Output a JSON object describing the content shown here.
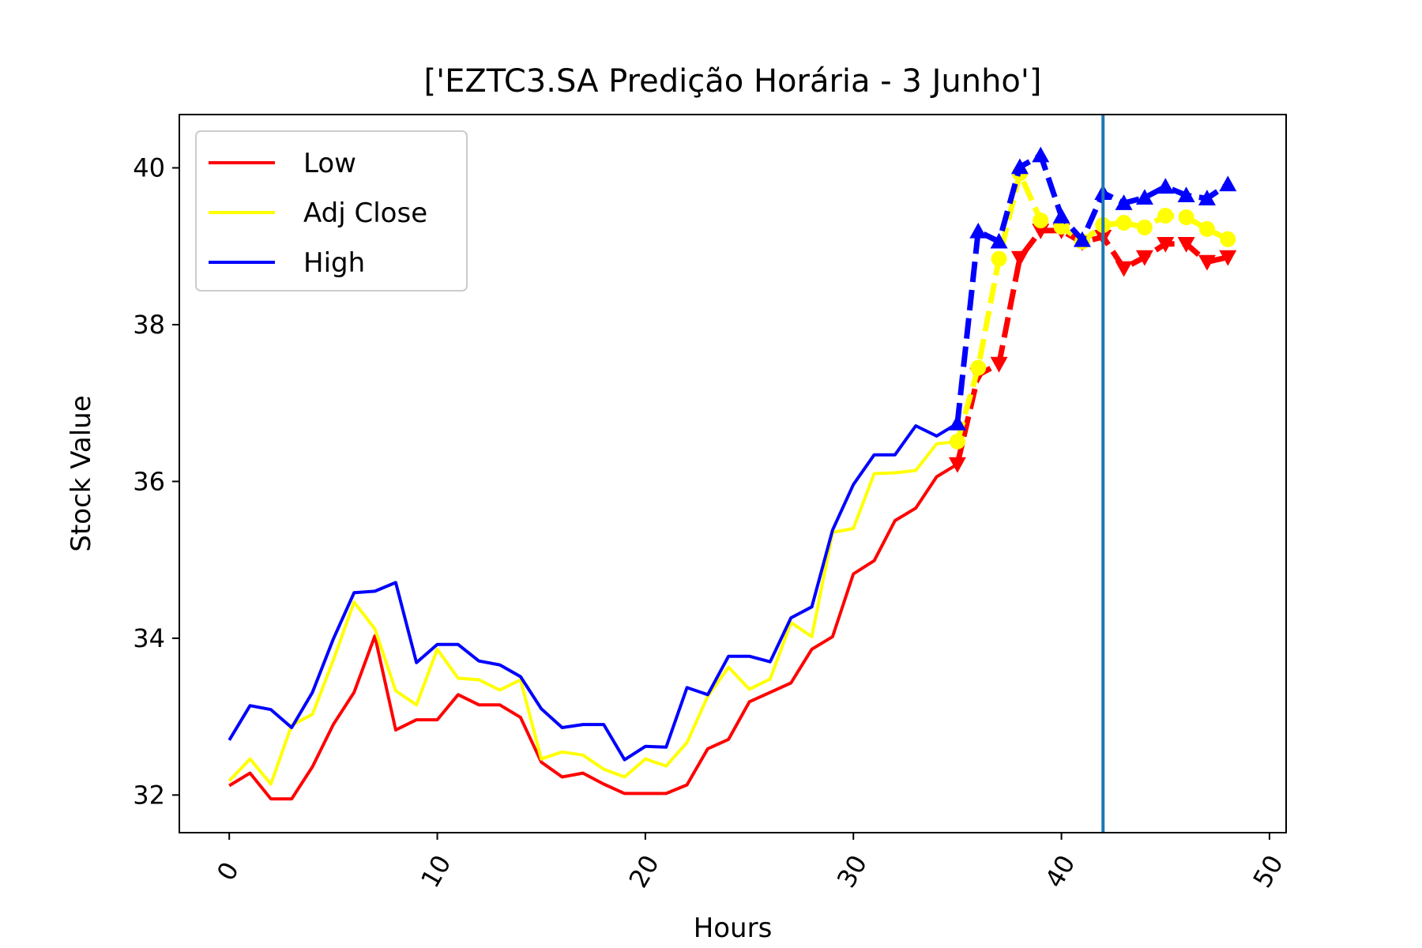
{
  "chart_data": {
    "type": "line",
    "title": "['EZTC3.SA Predição Horária - 3 Junho']",
    "xlabel": "Hours",
    "ylabel": "Stock Value",
    "xlim": [
      -2.4,
      50.8
    ],
    "ylim": [
      31.52,
      40.68
    ],
    "xticks": [
      0,
      10,
      20,
      30,
      40,
      50
    ],
    "xtick_labels": [
      "0",
      "10",
      "20",
      "30",
      "40",
      "50"
    ],
    "xtick_rotation": -60,
    "yticks": [
      32,
      34,
      36,
      38,
      40
    ],
    "ytick_labels": [
      "32",
      "34",
      "36",
      "38",
      "40"
    ],
    "grid": false,
    "legend": {
      "placement": "upper-left"
    },
    "vline": {
      "x": 42,
      "color": "#1f77b4"
    },
    "series": [
      {
        "name": "Low",
        "color": "#ff0000",
        "historical": {
          "x": [
            0,
            1,
            2,
            3,
            4,
            5,
            6,
            7,
            8,
            9,
            10,
            11,
            12,
            13,
            14,
            15,
            16,
            17,
            18,
            19,
            20,
            21,
            22,
            23,
            24,
            25,
            26,
            27,
            28,
            29,
            30,
            31,
            32,
            33,
            34,
            35
          ],
          "y": [
            32.12,
            32.28,
            31.95,
            31.95,
            32.36,
            32.9,
            33.31,
            34.03,
            32.83,
            32.96,
            32.96,
            33.28,
            33.15,
            33.15,
            32.99,
            32.42,
            32.23,
            32.28,
            32.14,
            32.02,
            32.02,
            32.02,
            32.13,
            32.59,
            32.71,
            33.19,
            33.31,
            33.43,
            33.86,
            34.02,
            34.82,
            34.99,
            35.5,
            35.66,
            36.06,
            36.22
          ]
        },
        "predicted": {
          "marker": "triangle-down",
          "x": [
            35,
            36,
            37,
            38,
            39,
            40,
            41,
            42,
            43,
            44,
            45,
            46,
            47,
            48
          ],
          "y": [
            36.22,
            37.36,
            37.5,
            38.85,
            39.2,
            39.2,
            39.05,
            39.12,
            38.72,
            38.86,
            39.03,
            39.03,
            38.8,
            38.86
          ]
        }
      },
      {
        "name": "Adj Close",
        "color": "#ffff00",
        "historical": {
          "x": [
            0,
            1,
            2,
            3,
            4,
            5,
            6,
            7,
            8,
            9,
            10,
            11,
            12,
            13,
            14,
            15,
            16,
            17,
            18,
            19,
            20,
            21,
            22,
            23,
            24,
            25,
            26,
            27,
            28,
            29,
            30,
            31,
            32,
            33,
            34,
            35
          ],
          "y": [
            32.18,
            32.46,
            32.14,
            32.89,
            33.03,
            33.72,
            34.46,
            34.12,
            33.33,
            33.15,
            33.86,
            33.49,
            33.47,
            33.34,
            33.47,
            32.46,
            32.55,
            32.51,
            32.33,
            32.23,
            32.46,
            32.37,
            32.67,
            33.26,
            33.63,
            33.35,
            33.48,
            34.2,
            34.02,
            35.35,
            35.4,
            36.1,
            36.11,
            36.14,
            36.48,
            36.51
          ]
        },
        "predicted": {
          "marker": "circle",
          "x": [
            35,
            36,
            37,
            38,
            39,
            40,
            41,
            42,
            43,
            44,
            45,
            46,
            47,
            48
          ],
          "y": [
            36.51,
            37.45,
            38.84,
            39.93,
            39.33,
            39.25,
            39.06,
            39.27,
            39.3,
            39.24,
            39.39,
            39.37,
            39.22,
            39.09
          ]
        }
      },
      {
        "name": "High",
        "color": "#0000ff",
        "historical": {
          "x": [
            0,
            1,
            2,
            3,
            4,
            5,
            6,
            7,
            8,
            9,
            10,
            11,
            12,
            13,
            14,
            15,
            16,
            17,
            18,
            19,
            20,
            21,
            22,
            23,
            24,
            25,
            26,
            27,
            28,
            29,
            30,
            31,
            32,
            33,
            34,
            35
          ],
          "y": [
            32.7,
            33.14,
            33.09,
            32.86,
            33.31,
            33.99,
            34.58,
            34.6,
            34.71,
            33.69,
            33.92,
            33.92,
            33.71,
            33.66,
            33.51,
            33.1,
            32.86,
            32.9,
            32.9,
            32.45,
            32.62,
            32.61,
            33.37,
            33.28,
            33.77,
            33.77,
            33.7,
            34.26,
            34.4,
            35.38,
            35.96,
            36.34,
            36.34,
            36.71,
            36.58,
            36.74
          ]
        },
        "predicted": {
          "marker": "triangle-up",
          "x": [
            35,
            36,
            37,
            38,
            39,
            40,
            41,
            42,
            43,
            44,
            45,
            46,
            47,
            48
          ],
          "y": [
            36.74,
            39.19,
            39.06,
            40.01,
            40.16,
            39.38,
            39.08,
            39.68,
            39.55,
            39.62,
            39.76,
            39.65,
            39.61,
            39.79
          ]
        }
      }
    ]
  }
}
